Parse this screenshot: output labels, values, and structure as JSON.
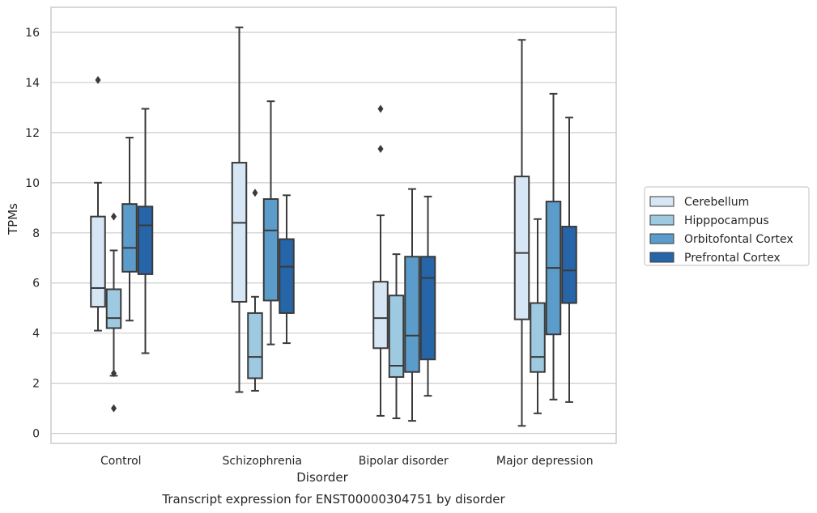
{
  "chart_data": {
    "type": "box",
    "xlabel": "Disorder",
    "ylabel": "TPMs",
    "caption": "Transcript expression for ENST00000304751 by disorder",
    "ylim": [
      -0.4,
      17
    ],
    "yticks": [
      0,
      2,
      4,
      6,
      8,
      10,
      12,
      14,
      16
    ],
    "grid": "horizontal",
    "legend_placement": "right",
    "categories": [
      "Control",
      "Schizophrenia",
      "Bipolar disorder",
      "Major depression"
    ],
    "series": [
      {
        "name": "Cerebellum",
        "color": "#d6e6f4",
        "boxes": [
          {
            "whisker_low": 4.1,
            "q1": 5.05,
            "median": 5.8,
            "q3": 8.65,
            "whisker_high": 10.0,
            "outliers": [
              14.1
            ]
          },
          {
            "whisker_low": 1.65,
            "q1": 5.25,
            "median": 8.4,
            "q3": 10.8,
            "whisker_high": 16.2,
            "outliers": []
          },
          {
            "whisker_low": 0.7,
            "q1": 3.4,
            "median": 4.6,
            "q3": 6.05,
            "whisker_high": 8.7,
            "outliers": [
              11.35,
              12.95
            ]
          },
          {
            "whisker_low": 0.3,
            "q1": 4.55,
            "median": 7.2,
            "q3": 10.25,
            "whisker_high": 15.7,
            "outliers": []
          }
        ]
      },
      {
        "name": "Hipppocampus",
        "color": "#9ecae1",
        "boxes": [
          {
            "whisker_low": 2.3,
            "q1": 4.2,
            "median": 4.6,
            "q3": 5.75,
            "whisker_high": 7.3,
            "outliers": [
              8.65,
              2.4,
              1.0
            ]
          },
          {
            "whisker_low": 1.7,
            "q1": 2.2,
            "median": 3.05,
            "q3": 4.8,
            "whisker_high": 5.45,
            "outliers": [
              9.6
            ]
          },
          {
            "whisker_low": 0.6,
            "q1": 2.25,
            "median": 2.7,
            "q3": 5.5,
            "whisker_high": 7.15,
            "outliers": []
          },
          {
            "whisker_low": 0.8,
            "q1": 2.45,
            "median": 3.05,
            "q3": 5.2,
            "whisker_high": 8.55,
            "outliers": []
          }
        ]
      },
      {
        "name": "Orbitofontal Cortex",
        "color": "#5b9ccb",
        "boxes": [
          {
            "whisker_low": 4.5,
            "q1": 6.45,
            "median": 7.4,
            "q3": 9.15,
            "whisker_high": 11.8,
            "outliers": []
          },
          {
            "whisker_low": 3.55,
            "q1": 5.3,
            "median": 8.1,
            "q3": 9.35,
            "whisker_high": 13.25,
            "outliers": []
          },
          {
            "whisker_low": 0.5,
            "q1": 2.45,
            "median": 3.9,
            "q3": 7.05,
            "whisker_high": 9.75,
            "outliers": []
          },
          {
            "whisker_low": 1.35,
            "q1": 3.95,
            "median": 6.6,
            "q3": 9.25,
            "whisker_high": 13.55,
            "outliers": []
          }
        ]
      },
      {
        "name": "Prefrontal Cortex",
        "color": "#2565a8",
        "boxes": [
          {
            "whisker_low": 3.2,
            "q1": 6.35,
            "median": 8.3,
            "q3": 9.05,
            "whisker_high": 12.95,
            "outliers": []
          },
          {
            "whisker_low": 3.6,
            "q1": 4.8,
            "median": 6.65,
            "q3": 7.75,
            "whisker_high": 9.5,
            "outliers": []
          },
          {
            "whisker_low": 1.5,
            "q1": 2.95,
            "median": 6.2,
            "q3": 7.05,
            "whisker_high": 9.45,
            "outliers": []
          },
          {
            "whisker_low": 1.25,
            "q1": 5.2,
            "median": 6.5,
            "q3": 8.25,
            "whisker_high": 12.6,
            "outliers": []
          }
        ]
      }
    ]
  }
}
